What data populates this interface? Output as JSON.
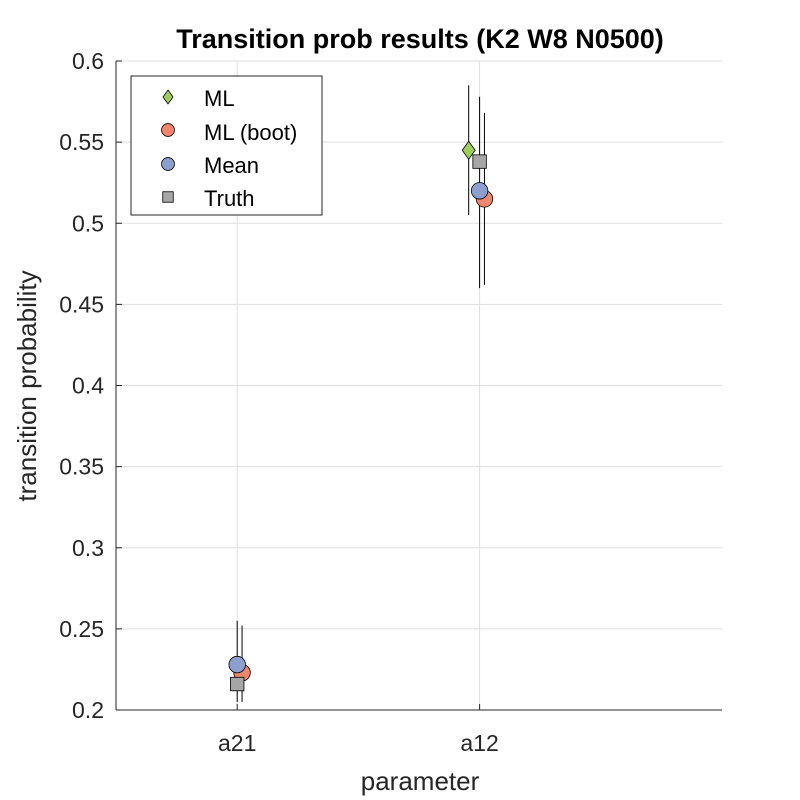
{
  "chart_data": {
    "type": "scatter",
    "title": "Transition prob results (K2 W8 N0500)",
    "xlabel": "parameter",
    "ylabel": "transition probability",
    "categories": [
      "a21",
      "a12"
    ],
    "xlim": [
      0.5,
      3.0
    ],
    "ylim": [
      0.2,
      0.6
    ],
    "yticks": [
      "0.2",
      "0.25",
      "0.3",
      "0.35",
      "0.4",
      "0.45",
      "0.5",
      "0.55",
      "0.6"
    ],
    "grid": true,
    "legend_position": "top-left",
    "series": [
      {
        "name": "ML",
        "marker": "diamond",
        "color": "#a0cd5a",
        "points": [
          {
            "category": "a12",
            "value": 0.545,
            "lower": 0.505,
            "upper": 0.585
          }
        ]
      },
      {
        "name": "ML (boot)",
        "marker": "circle",
        "color": "#f0866e",
        "points": [
          {
            "category": "a21",
            "value": 0.223,
            "lower": 0.205,
            "upper": 0.252
          },
          {
            "category": "a12",
            "value": 0.515,
            "lower": 0.462,
            "upper": 0.568
          }
        ]
      },
      {
        "name": "Mean",
        "marker": "circle",
        "color": "#8d9fcf",
        "points": [
          {
            "category": "a21",
            "value": 0.228,
            "lower": 0.205,
            "upper": 0.255
          },
          {
            "category": "a12",
            "value": 0.52,
            "lower": 0.46,
            "upper": 0.578
          }
        ]
      },
      {
        "name": "Truth",
        "marker": "square",
        "color": "#a6a6a6",
        "points": [
          {
            "category": "a21",
            "value": 0.216
          },
          {
            "category": "a12",
            "value": 0.538
          }
        ]
      }
    ]
  }
}
